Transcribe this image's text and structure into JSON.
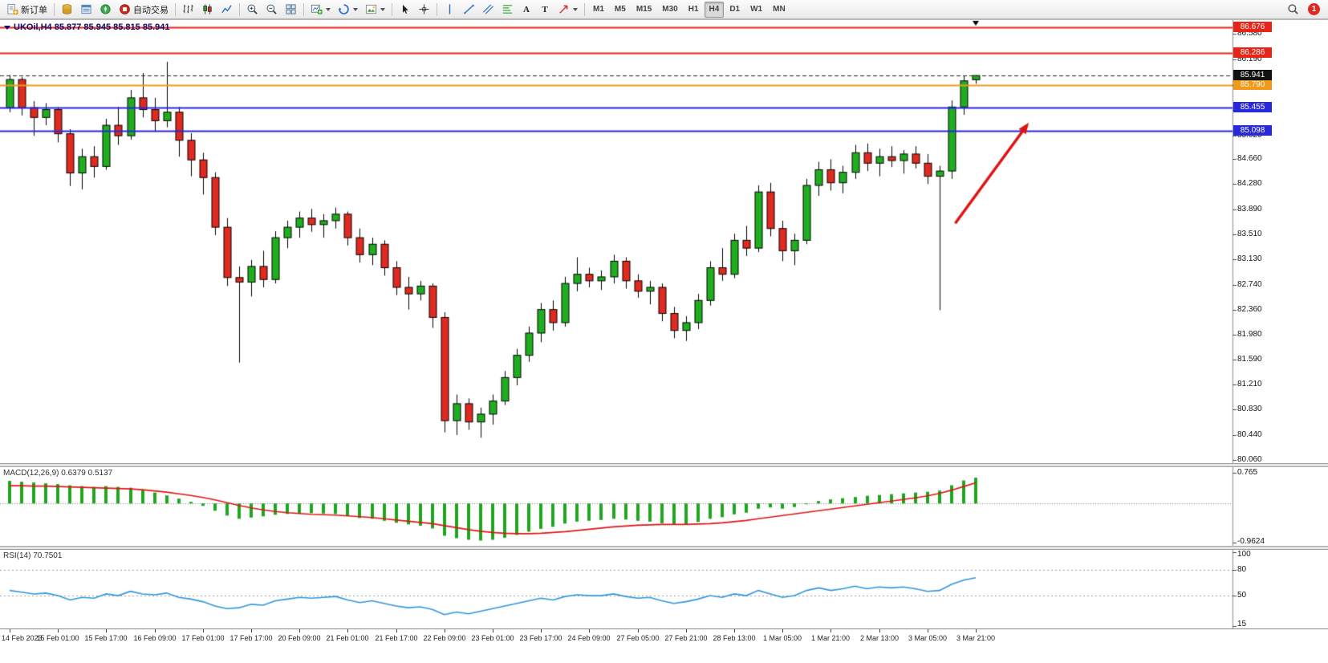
{
  "toolbar": {
    "new_order_label": "新订单",
    "auto_trading_label": "自动交易",
    "text_tool_label": "A",
    "label_tool_label": "T",
    "timeframes": [
      "M1",
      "M5",
      "M15",
      "M30",
      "H1",
      "H4",
      "D1",
      "W1",
      "MN"
    ],
    "active_timeframe": "H4",
    "notification_count": "1"
  },
  "chart_header": {
    "title": "UKOil,H4 85.877 85.945 85.815 85.941",
    "symbol": "UKOil",
    "period": "H4",
    "open": "85.877",
    "high": "85.945",
    "low": "85.815",
    "close": "85.941"
  },
  "chart_data": [
    {
      "type": "candlestick",
      "title": "UKOil,H4",
      "symbol": "UKOil",
      "timeframe": "H4",
      "ylim": [
        80.01,
        86.79
      ],
      "colors": {
        "up": "#1fae1f",
        "down": "#e02a20",
        "wick": "#000000"
      },
      "y_ticks": [
        "86.580",
        "86.190",
        "85.800",
        "85.410",
        "85.020",
        "84.660",
        "84.280",
        "83.890",
        "83.510",
        "83.130",
        "82.740",
        "82.360",
        "81.980",
        "81.590",
        "81.210",
        "80.830",
        "80.440",
        "80.060"
      ],
      "x_tick_every": 4,
      "x_tick_labels": [
        "14 Feb 2023",
        "15 Feb 01:00",
        "15 Feb 17:00",
        "16 Feb 09:00",
        "17 Feb 01:00",
        "17 Feb 17:00",
        "20 Feb 09:00",
        "21 Feb 01:00",
        "21 Feb 17:00",
        "22 Feb 09:00",
        "23 Feb 01:00",
        "23 Feb 17:00",
        "24 Feb 09:00",
        "27 Feb 05:00",
        "27 Feb 21:00",
        "28 Feb 13:00",
        "1 Mar 05:00",
        "1 Mar 21:00",
        "2 Mar 13:00",
        "3 Mar 05:00",
        "3 Mar 21:00"
      ],
      "levels": [
        {
          "price": 86.676,
          "label": "86.676",
          "color": "#e8231a",
          "style": "solid"
        },
        {
          "price": 86.286,
          "label": "86.286",
          "color": "#e8231a",
          "style": "solid"
        },
        {
          "price": 85.79,
          "label": "85.790",
          "color": "#f2991a",
          "style": "solid"
        },
        {
          "price": 85.455,
          "label": "85.455",
          "color": "#2828dc",
          "style": "solid"
        },
        {
          "price": 85.098,
          "label": "85.098",
          "color": "#2828dc",
          "style": "solid"
        }
      ],
      "bid": {
        "price": 85.941,
        "label": "85.941",
        "color": "#111111",
        "style": "dashed"
      },
      "annotation_arrow": {
        "from": [
          78.3,
          83.68
        ],
        "to": [
          84.4,
          85.22
        ],
        "color": "#dd1414"
      },
      "ohlc": [
        [
          85.45,
          85.95,
          85.38,
          85.88
        ],
        [
          85.88,
          85.92,
          85.33,
          85.45
        ],
        [
          85.45,
          85.55,
          85.02,
          85.3
        ],
        [
          85.3,
          85.52,
          85.18,
          85.42
        ],
        [
          85.42,
          85.46,
          84.92,
          85.05
        ],
        [
          85.05,
          85.12,
          84.25,
          84.45
        ],
        [
          84.45,
          84.82,
          84.2,
          84.7
        ],
        [
          84.7,
          84.86,
          84.38,
          84.55
        ],
        [
          84.55,
          85.28,
          84.5,
          85.18
        ],
        [
          85.18,
          85.46,
          84.88,
          85.02
        ],
        [
          85.02,
          85.72,
          84.96,
          85.6
        ],
        [
          85.6,
          85.98,
          85.3,
          85.42
        ],
        [
          85.42,
          85.6,
          85.08,
          85.25
        ],
        [
          85.25,
          86.15,
          85.15,
          85.38
        ],
        [
          85.38,
          85.46,
          84.7,
          84.95
        ],
        [
          84.95,
          85.06,
          84.4,
          84.65
        ],
        [
          84.65,
          84.76,
          84.12,
          84.38
        ],
        [
          84.38,
          84.46,
          83.5,
          83.62
        ],
        [
          83.62,
          83.76,
          82.72,
          82.85
        ],
        [
          82.85,
          83.02,
          81.55,
          82.78
        ],
        [
          82.78,
          83.12,
          82.56,
          83.02
        ],
        [
          83.02,
          83.26,
          82.7,
          82.82
        ],
        [
          82.82,
          83.56,
          82.76,
          83.46
        ],
        [
          83.46,
          83.72,
          83.3,
          83.62
        ],
        [
          83.62,
          83.86,
          83.46,
          83.76
        ],
        [
          83.76,
          83.9,
          83.55,
          83.66
        ],
        [
          83.66,
          83.82,
          83.46,
          83.72
        ],
        [
          83.72,
          83.92,
          83.6,
          83.82
        ],
        [
          83.82,
          83.86,
          83.34,
          83.46
        ],
        [
          83.46,
          83.6,
          83.08,
          83.2
        ],
        [
          83.2,
          83.46,
          83.04,
          83.36
        ],
        [
          83.36,
          83.42,
          82.88,
          83.0
        ],
        [
          83.0,
          83.1,
          82.58,
          82.7
        ],
        [
          82.7,
          82.86,
          82.36,
          82.6
        ],
        [
          82.6,
          82.8,
          82.5,
          82.72
        ],
        [
          82.72,
          82.76,
          82.08,
          82.24
        ],
        [
          82.24,
          82.32,
          80.48,
          80.66
        ],
        [
          80.66,
          81.06,
          80.44,
          80.92
        ],
        [
          80.92,
          81.0,
          80.52,
          80.64
        ],
        [
          80.64,
          80.86,
          80.4,
          80.76
        ],
        [
          80.76,
          81.06,
          80.6,
          80.96
        ],
        [
          80.96,
          81.42,
          80.9,
          81.32
        ],
        [
          81.32,
          81.76,
          81.2,
          81.66
        ],
        [
          81.66,
          82.1,
          81.56,
          82.0
        ],
        [
          82.0,
          82.46,
          81.86,
          82.36
        ],
        [
          82.36,
          82.5,
          82.04,
          82.16
        ],
        [
          82.16,
          82.86,
          82.1,
          82.76
        ],
        [
          82.76,
          83.16,
          82.64,
          82.9
        ],
        [
          82.9,
          83.0,
          82.7,
          82.8
        ],
        [
          82.8,
          82.96,
          82.66,
          82.86
        ],
        [
          82.86,
          83.2,
          82.76,
          83.1
        ],
        [
          83.1,
          83.16,
          82.68,
          82.8
        ],
        [
          82.8,
          82.9,
          82.54,
          82.64
        ],
        [
          82.64,
          82.8,
          82.44,
          82.7
        ],
        [
          82.7,
          82.76,
          82.18,
          82.3
        ],
        [
          82.3,
          82.4,
          81.92,
          82.04
        ],
        [
          82.04,
          82.26,
          81.88,
          82.16
        ],
        [
          82.16,
          82.6,
          82.06,
          82.5
        ],
        [
          82.5,
          83.1,
          82.42,
          83.0
        ],
        [
          83.0,
          83.3,
          82.8,
          82.9
        ],
        [
          82.9,
          83.52,
          82.84,
          83.42
        ],
        [
          83.42,
          83.64,
          83.18,
          83.3
        ],
        [
          83.3,
          84.26,
          83.24,
          84.16
        ],
        [
          84.16,
          84.3,
          83.48,
          83.6
        ],
        [
          83.6,
          83.72,
          83.1,
          83.26
        ],
        [
          83.26,
          83.52,
          83.04,
          83.42
        ],
        [
          83.42,
          84.36,
          83.36,
          84.26
        ],
        [
          84.26,
          84.62,
          84.1,
          84.5
        ],
        [
          84.5,
          84.66,
          84.18,
          84.3
        ],
        [
          84.3,
          84.56,
          84.14,
          84.46
        ],
        [
          84.46,
          84.88,
          84.36,
          84.76
        ],
        [
          84.76,
          84.9,
          84.48,
          84.6
        ],
        [
          84.6,
          84.82,
          84.4,
          84.7
        ],
        [
          84.7,
          84.86,
          84.54,
          84.64
        ],
        [
          84.64,
          84.8,
          84.44,
          84.74
        ],
        [
          84.74,
          84.86,
          84.52,
          84.6
        ],
        [
          84.6,
          84.74,
          84.28,
          84.4
        ],
        [
          84.4,
          84.56,
          82.35,
          84.48
        ],
        [
          84.48,
          85.56,
          84.36,
          85.46
        ],
        [
          85.46,
          85.94,
          85.34,
          85.86
        ],
        [
          85.877,
          85.945,
          85.815,
          85.941
        ]
      ]
    },
    {
      "type": "macd_histogram",
      "label": "MACD(12,26,9) 0.6379 0.5137",
      "params": "12,26,9",
      "macd_value": 0.6379,
      "signal_value": 0.5137,
      "ylim": [
        -1.05,
        0.9
      ],
      "y_tick_values": [
        0.765,
        -0.9624
      ],
      "y_tick_labels": [
        "0.765",
        "-0.9624"
      ],
      "colors": {
        "histogram": "#1fa51f",
        "signal": "#e01616"
      },
      "histogram": [
        0.56,
        0.54,
        0.52,
        0.5,
        0.48,
        0.45,
        0.43,
        0.41,
        0.43,
        0.41,
        0.39,
        0.34,
        0.27,
        0.2,
        0.12,
        0.04,
        -0.06,
        -0.18,
        -0.3,
        -0.38,
        -0.35,
        -0.32,
        -0.28,
        -0.26,
        -0.24,
        -0.24,
        -0.25,
        -0.26,
        -0.3,
        -0.36,
        -0.38,
        -0.43,
        -0.48,
        -0.52,
        -0.55,
        -0.62,
        -0.8,
        -0.86,
        -0.9,
        -0.92,
        -0.9,
        -0.85,
        -0.78,
        -0.7,
        -0.63,
        -0.58,
        -0.5,
        -0.45,
        -0.43,
        -0.41,
        -0.38,
        -0.4,
        -0.43,
        -0.45,
        -0.49,
        -0.53,
        -0.52,
        -0.46,
        -0.38,
        -0.34,
        -0.27,
        -0.23,
        -0.13,
        -0.1,
        -0.13,
        -0.09,
        -0.02,
        0.06,
        0.1,
        0.13,
        0.16,
        0.19,
        0.21,
        0.23,
        0.25,
        0.27,
        0.29,
        0.32,
        0.45,
        0.57,
        0.6379
      ],
      "signal": [
        0.44,
        0.44,
        0.43,
        0.43,
        0.42,
        0.41,
        0.4,
        0.39,
        0.38,
        0.37,
        0.36,
        0.34,
        0.31,
        0.28,
        0.24,
        0.2,
        0.15,
        0.09,
        0.02,
        -0.05,
        -0.11,
        -0.16,
        -0.2,
        -0.23,
        -0.25,
        -0.27,
        -0.28,
        -0.29,
        -0.31,
        -0.33,
        -0.35,
        -0.38,
        -0.41,
        -0.44,
        -0.47,
        -0.5,
        -0.55,
        -0.6,
        -0.65,
        -0.69,
        -0.72,
        -0.74,
        -0.75,
        -0.75,
        -0.74,
        -0.72,
        -0.7,
        -0.67,
        -0.64,
        -0.61,
        -0.58,
        -0.56,
        -0.54,
        -0.53,
        -0.52,
        -0.52,
        -0.52,
        -0.51,
        -0.5,
        -0.48,
        -0.45,
        -0.42,
        -0.38,
        -0.34,
        -0.3,
        -0.26,
        -0.22,
        -0.18,
        -0.14,
        -0.1,
        -0.06,
        -0.02,
        0.02,
        0.06,
        0.1,
        0.14,
        0.19,
        0.25,
        0.33,
        0.42,
        0.5137
      ]
    },
    {
      "type": "line",
      "label": "RSI(14) 70.7501",
      "period": "14",
      "current_value": 70.7501,
      "ylim": [
        12,
        103
      ],
      "levels": [
        80,
        50
      ],
      "y_tick_values": [
        100,
        80,
        50,
        15
      ],
      "y_tick_labels": [
        "100",
        "80",
        "50",
        "15"
      ],
      "color": "#2f96dc",
      "values": [
        56,
        54,
        52,
        53,
        50,
        45,
        48,
        47,
        52,
        50,
        55,
        52,
        51,
        53,
        48,
        46,
        43,
        38,
        35,
        36,
        40,
        39,
        44,
        46,
        48,
        47,
        48,
        49,
        45,
        42,
        44,
        41,
        38,
        36,
        37,
        34,
        28,
        31,
        29,
        32,
        35,
        38,
        41,
        44,
        47,
        45,
        49,
        51,
        50,
        50,
        52,
        49,
        47,
        48,
        44,
        41,
        43,
        46,
        50,
        48,
        52,
        50,
        56,
        52,
        48,
        50,
        56,
        59,
        56,
        58,
        61,
        58,
        60,
        59,
        60,
        58,
        55,
        56,
        63,
        68,
        70.75
      ]
    }
  ]
}
